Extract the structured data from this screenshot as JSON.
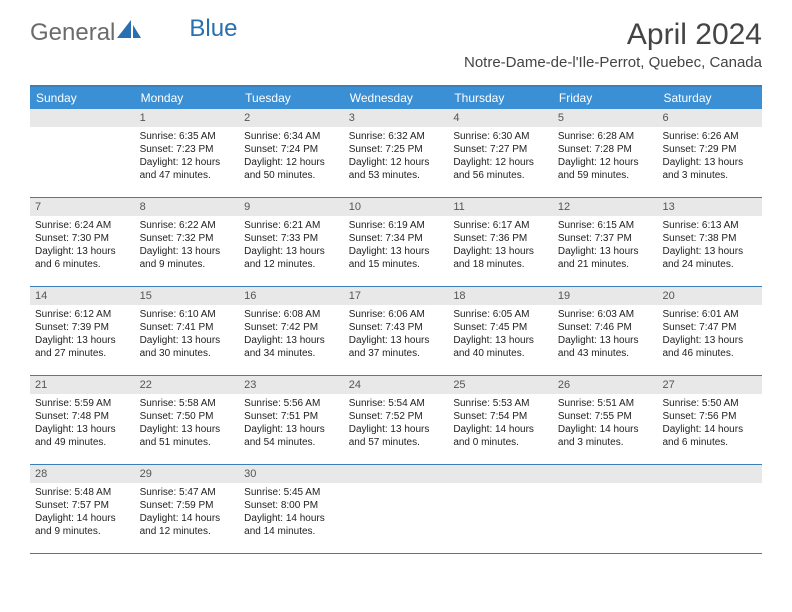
{
  "logo": {
    "text1": "General",
    "text2": "Blue"
  },
  "title": "April 2024",
  "location": "Notre-Dame-de-l'Ile-Perrot, Quebec, Canada",
  "weekdays": [
    "Sunday",
    "Monday",
    "Tuesday",
    "Wednesday",
    "Thursday",
    "Friday",
    "Saturday"
  ],
  "colors": {
    "header_bar": "#3b8fd4",
    "border": "#3b7fb8",
    "daynum_bg": "#e8e8e8",
    "logo_gray": "#6b6b6b",
    "logo_blue": "#2a6fb0"
  },
  "weeks": [
    [
      {
        "n": "",
        "sr": "",
        "ss": "",
        "dl": ""
      },
      {
        "n": "1",
        "sr": "Sunrise: 6:35 AM",
        "ss": "Sunset: 7:23 PM",
        "dl": "Daylight: 12 hours and 47 minutes."
      },
      {
        "n": "2",
        "sr": "Sunrise: 6:34 AM",
        "ss": "Sunset: 7:24 PM",
        "dl": "Daylight: 12 hours and 50 minutes."
      },
      {
        "n": "3",
        "sr": "Sunrise: 6:32 AM",
        "ss": "Sunset: 7:25 PM",
        "dl": "Daylight: 12 hours and 53 minutes."
      },
      {
        "n": "4",
        "sr": "Sunrise: 6:30 AM",
        "ss": "Sunset: 7:27 PM",
        "dl": "Daylight: 12 hours and 56 minutes."
      },
      {
        "n": "5",
        "sr": "Sunrise: 6:28 AM",
        "ss": "Sunset: 7:28 PM",
        "dl": "Daylight: 12 hours and 59 minutes."
      },
      {
        "n": "6",
        "sr": "Sunrise: 6:26 AM",
        "ss": "Sunset: 7:29 PM",
        "dl": "Daylight: 13 hours and 3 minutes."
      }
    ],
    [
      {
        "n": "7",
        "sr": "Sunrise: 6:24 AM",
        "ss": "Sunset: 7:30 PM",
        "dl": "Daylight: 13 hours and 6 minutes."
      },
      {
        "n": "8",
        "sr": "Sunrise: 6:22 AM",
        "ss": "Sunset: 7:32 PM",
        "dl": "Daylight: 13 hours and 9 minutes."
      },
      {
        "n": "9",
        "sr": "Sunrise: 6:21 AM",
        "ss": "Sunset: 7:33 PM",
        "dl": "Daylight: 13 hours and 12 minutes."
      },
      {
        "n": "10",
        "sr": "Sunrise: 6:19 AM",
        "ss": "Sunset: 7:34 PM",
        "dl": "Daylight: 13 hours and 15 minutes."
      },
      {
        "n": "11",
        "sr": "Sunrise: 6:17 AM",
        "ss": "Sunset: 7:36 PM",
        "dl": "Daylight: 13 hours and 18 minutes."
      },
      {
        "n": "12",
        "sr": "Sunrise: 6:15 AM",
        "ss": "Sunset: 7:37 PM",
        "dl": "Daylight: 13 hours and 21 minutes."
      },
      {
        "n": "13",
        "sr": "Sunrise: 6:13 AM",
        "ss": "Sunset: 7:38 PM",
        "dl": "Daylight: 13 hours and 24 minutes."
      }
    ],
    [
      {
        "n": "14",
        "sr": "Sunrise: 6:12 AM",
        "ss": "Sunset: 7:39 PM",
        "dl": "Daylight: 13 hours and 27 minutes."
      },
      {
        "n": "15",
        "sr": "Sunrise: 6:10 AM",
        "ss": "Sunset: 7:41 PM",
        "dl": "Daylight: 13 hours and 30 minutes."
      },
      {
        "n": "16",
        "sr": "Sunrise: 6:08 AM",
        "ss": "Sunset: 7:42 PM",
        "dl": "Daylight: 13 hours and 34 minutes."
      },
      {
        "n": "17",
        "sr": "Sunrise: 6:06 AM",
        "ss": "Sunset: 7:43 PM",
        "dl": "Daylight: 13 hours and 37 minutes."
      },
      {
        "n": "18",
        "sr": "Sunrise: 6:05 AM",
        "ss": "Sunset: 7:45 PM",
        "dl": "Daylight: 13 hours and 40 minutes."
      },
      {
        "n": "19",
        "sr": "Sunrise: 6:03 AM",
        "ss": "Sunset: 7:46 PM",
        "dl": "Daylight: 13 hours and 43 minutes."
      },
      {
        "n": "20",
        "sr": "Sunrise: 6:01 AM",
        "ss": "Sunset: 7:47 PM",
        "dl": "Daylight: 13 hours and 46 minutes."
      }
    ],
    [
      {
        "n": "21",
        "sr": "Sunrise: 5:59 AM",
        "ss": "Sunset: 7:48 PM",
        "dl": "Daylight: 13 hours and 49 minutes."
      },
      {
        "n": "22",
        "sr": "Sunrise: 5:58 AM",
        "ss": "Sunset: 7:50 PM",
        "dl": "Daylight: 13 hours and 51 minutes."
      },
      {
        "n": "23",
        "sr": "Sunrise: 5:56 AM",
        "ss": "Sunset: 7:51 PM",
        "dl": "Daylight: 13 hours and 54 minutes."
      },
      {
        "n": "24",
        "sr": "Sunrise: 5:54 AM",
        "ss": "Sunset: 7:52 PM",
        "dl": "Daylight: 13 hours and 57 minutes."
      },
      {
        "n": "25",
        "sr": "Sunrise: 5:53 AM",
        "ss": "Sunset: 7:54 PM",
        "dl": "Daylight: 14 hours and 0 minutes."
      },
      {
        "n": "26",
        "sr": "Sunrise: 5:51 AM",
        "ss": "Sunset: 7:55 PM",
        "dl": "Daylight: 14 hours and 3 minutes."
      },
      {
        "n": "27",
        "sr": "Sunrise: 5:50 AM",
        "ss": "Sunset: 7:56 PM",
        "dl": "Daylight: 14 hours and 6 minutes."
      }
    ],
    [
      {
        "n": "28",
        "sr": "Sunrise: 5:48 AM",
        "ss": "Sunset: 7:57 PM",
        "dl": "Daylight: 14 hours and 9 minutes."
      },
      {
        "n": "29",
        "sr": "Sunrise: 5:47 AM",
        "ss": "Sunset: 7:59 PM",
        "dl": "Daylight: 14 hours and 12 minutes."
      },
      {
        "n": "30",
        "sr": "Sunrise: 5:45 AM",
        "ss": "Sunset: 8:00 PM",
        "dl": "Daylight: 14 hours and 14 minutes."
      },
      {
        "n": "",
        "sr": "",
        "ss": "",
        "dl": ""
      },
      {
        "n": "",
        "sr": "",
        "ss": "",
        "dl": ""
      },
      {
        "n": "",
        "sr": "",
        "ss": "",
        "dl": ""
      },
      {
        "n": "",
        "sr": "",
        "ss": "",
        "dl": ""
      }
    ]
  ]
}
